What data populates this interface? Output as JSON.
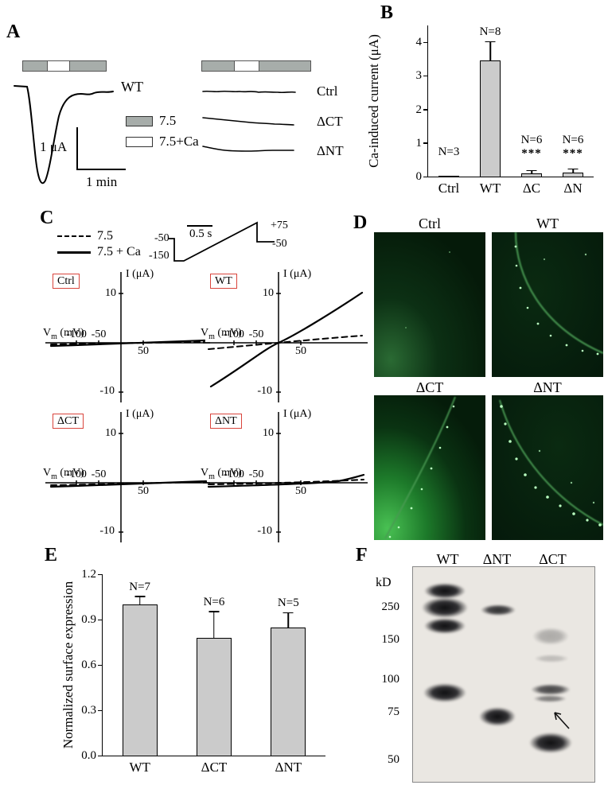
{
  "colors": {
    "bar_fill": "#cbcbcb",
    "box_red": "#d9453c",
    "blot_bg": "#eae7e2",
    "proto_gray": "#a7adaa",
    "fluor_arc": "#4a9a52",
    "fluor_dot": "#b9ffc0"
  },
  "panelA": {
    "label": "A",
    "wt_trace_label": "WT",
    "legend": [
      {
        "label": "7.5"
      },
      {
        "label": "7.5+Ca"
      }
    ],
    "scale_vertical": "1 μA",
    "scale_horizontal": "1 min",
    "right_traces": [
      "Ctrl",
      "ΔCT",
      "ΔNT"
    ]
  },
  "panelB": {
    "label": "B"
  },
  "panelC": {
    "label": "C",
    "legend": {
      "dashed": "7.5",
      "solid": "7.5 + Ca"
    },
    "ramp": {
      "scale_label": "0.5 s",
      "hold_left": "-50",
      "step_low": "-150",
      "peak": "+75",
      "hold_right": "-50"
    },
    "ylabel": "I (μA)",
    "vm": {
      "pre": "V",
      "sub": "m",
      "post": " (mV)"
    },
    "ticks": {
      "y_top": "10",
      "y_bottom": "-10",
      "x1": "-100",
      "x2": "-50",
      "x3": "50"
    },
    "plot_names": [
      "Ctrl",
      "WT",
      "ΔCT",
      "ΔNT"
    ]
  },
  "panelD": {
    "label": "D",
    "images": [
      "Ctrl",
      "WT",
      "ΔCT",
      "ΔNT"
    ]
  },
  "panelE": {
    "label": "E"
  },
  "panelF": {
    "label": "F",
    "kd_label": "kD",
    "lanes": [
      "WT",
      "ΔNT",
      "ΔCT"
    ],
    "markers": [
      "250",
      "150",
      "100",
      "75",
      "50"
    ]
  },
  "chart_data": [
    {
      "id": "B",
      "type": "bar",
      "title": "",
      "ylabel": "Ca-induced current (μA)",
      "categories": [
        "Ctrl",
        "WT",
        "ΔC",
        "ΔN"
      ],
      "values": [
        0.03,
        3.45,
        0.1,
        0.13
      ],
      "errors": [
        0,
        0.55,
        0.06,
        0.08
      ],
      "n_labels": [
        "N=3",
        "N=8",
        "N=6",
        "N=6"
      ],
      "sig": [
        "",
        "",
        "***",
        "***"
      ],
      "ylim": [
        0,
        4.5
      ],
      "yticks": [
        0,
        1,
        2,
        3,
        4
      ],
      "ytick_labels": [
        "0",
        "1",
        "2",
        "3",
        "4"
      ]
    },
    {
      "id": "E",
      "type": "bar",
      "title": "",
      "ylabel": "Normalized surface expression",
      "categories": [
        "WT",
        "ΔCT",
        "ΔNT"
      ],
      "values": [
        1.0,
        0.78,
        0.85
      ],
      "errors": [
        0.05,
        0.17,
        0.09
      ],
      "n_labels": [
        "N=7",
        "N=6",
        "N=5"
      ],
      "sig": [
        "",
        "",
        ""
      ],
      "ylim": [
        0,
        1.2
      ],
      "yticks": [
        0,
        0.3,
        0.6,
        0.9,
        1.2
      ],
      "ytick_labels": [
        "0.0",
        "0.3",
        "0.6",
        "0.9",
        "1.2"
      ]
    }
  ]
}
